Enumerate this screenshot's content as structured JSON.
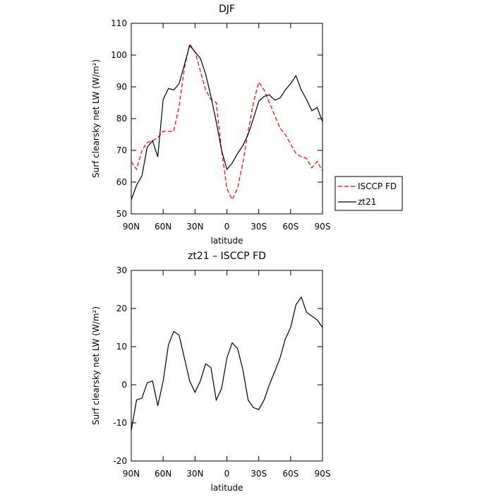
{
  "chart_data": [
    {
      "type": "line",
      "title": "DJF",
      "xlabel": "latitude",
      "ylabel": "Surf clearsky net LW (W/m²)",
      "x": [
        90,
        85,
        80,
        75,
        70,
        65,
        60,
        55,
        50,
        45,
        40,
        35,
        30,
        25,
        20,
        15,
        10,
        5,
        0,
        -5,
        -10,
        -15,
        -20,
        -25,
        -30,
        -35,
        -40,
        -45,
        -50,
        -55,
        -60,
        -65,
        -70,
        -75,
        -80,
        -85,
        -90
      ],
      "xlim": [
        90,
        -90
      ],
      "xticks": [
        {
          "value": 90,
          "label": "90N"
        },
        {
          "value": 60,
          "label": "60N"
        },
        {
          "value": 30,
          "label": "30N"
        },
        0,
        {
          "value": -30,
          "label": "30S"
        },
        {
          "value": -60,
          "label": "60S"
        },
        {
          "value": -90,
          "label": "90S"
        }
      ],
      "ylim": [
        50,
        110
      ],
      "yticks": [
        50,
        60,
        70,
        80,
        90,
        100,
        110
      ],
      "legend": "right",
      "series": [
        {
          "name": "ISCCP FD",
          "color": "#ff0000",
          "dashed": true,
          "values": [
            66.5,
            64,
            70,
            72.5,
            73,
            74,
            76,
            76,
            76,
            84,
            96,
            103.5,
            101,
            95,
            89,
            86,
            85,
            70,
            58,
            54.5,
            58,
            66,
            76,
            85,
            91.5,
            89,
            85,
            81,
            77,
            75,
            72,
            69,
            68,
            67.5,
            64.5,
            66.5,
            63.5
          ]
        },
        {
          "name": "zt21",
          "color": "#000000",
          "dashed": false,
          "values": [
            54.5,
            59,
            62,
            71,
            73,
            68,
            86,
            89.5,
            89,
            91,
            97,
            103,
            101,
            99,
            94,
            87,
            79,
            70,
            64,
            66,
            69,
            71.5,
            75,
            80,
            85.5,
            87,
            87.5,
            85.8,
            86.5,
            89,
            91,
            93.5,
            89,
            86,
            82.5,
            83.5,
            79
          ]
        }
      ]
    },
    {
      "type": "line",
      "title": "zt21 – ISCCP FD",
      "xlabel": "latitude",
      "ylabel": "Surf clearsky net LW (W/m²)",
      "x": [
        90,
        85,
        80,
        75,
        70,
        65,
        60,
        55,
        50,
        45,
        40,
        35,
        30,
        25,
        20,
        15,
        10,
        5,
        0,
        -5,
        -10,
        -15,
        -20,
        -25,
        -30,
        -35,
        -40,
        -45,
        -50,
        -55,
        -60,
        -65,
        -70,
        -75,
        -80,
        -85,
        -90
      ],
      "xlim": [
        90,
        -90
      ],
      "xticks": [
        {
          "value": 90,
          "label": "90N"
        },
        {
          "value": 60,
          "label": "60N"
        },
        {
          "value": 30,
          "label": "30N"
        },
        0,
        {
          "value": -30,
          "label": "30S"
        },
        {
          "value": -60,
          "label": "60S"
        },
        {
          "value": -90,
          "label": "90S"
        }
      ],
      "ylim": [
        -20,
        30
      ],
      "yticks": [
        -20,
        -10,
        0,
        10,
        20,
        30
      ],
      "series": [
        {
          "name": "zt21 – ISCCP FD",
          "color": "#000000",
          "dashed": false,
          "values": [
            -12,
            -4,
            -3.5,
            0.5,
            1,
            -5.5,
            1,
            10.5,
            14,
            13,
            7,
            1,
            -2,
            1,
            5.5,
            4.5,
            -4,
            -1,
            7,
            11,
            9.5,
            4,
            -4,
            -6,
            -6.5,
            -4,
            0,
            3.5,
            7,
            12,
            15,
            21,
            23,
            19,
            18,
            17,
            15
          ]
        }
      ]
    }
  ]
}
